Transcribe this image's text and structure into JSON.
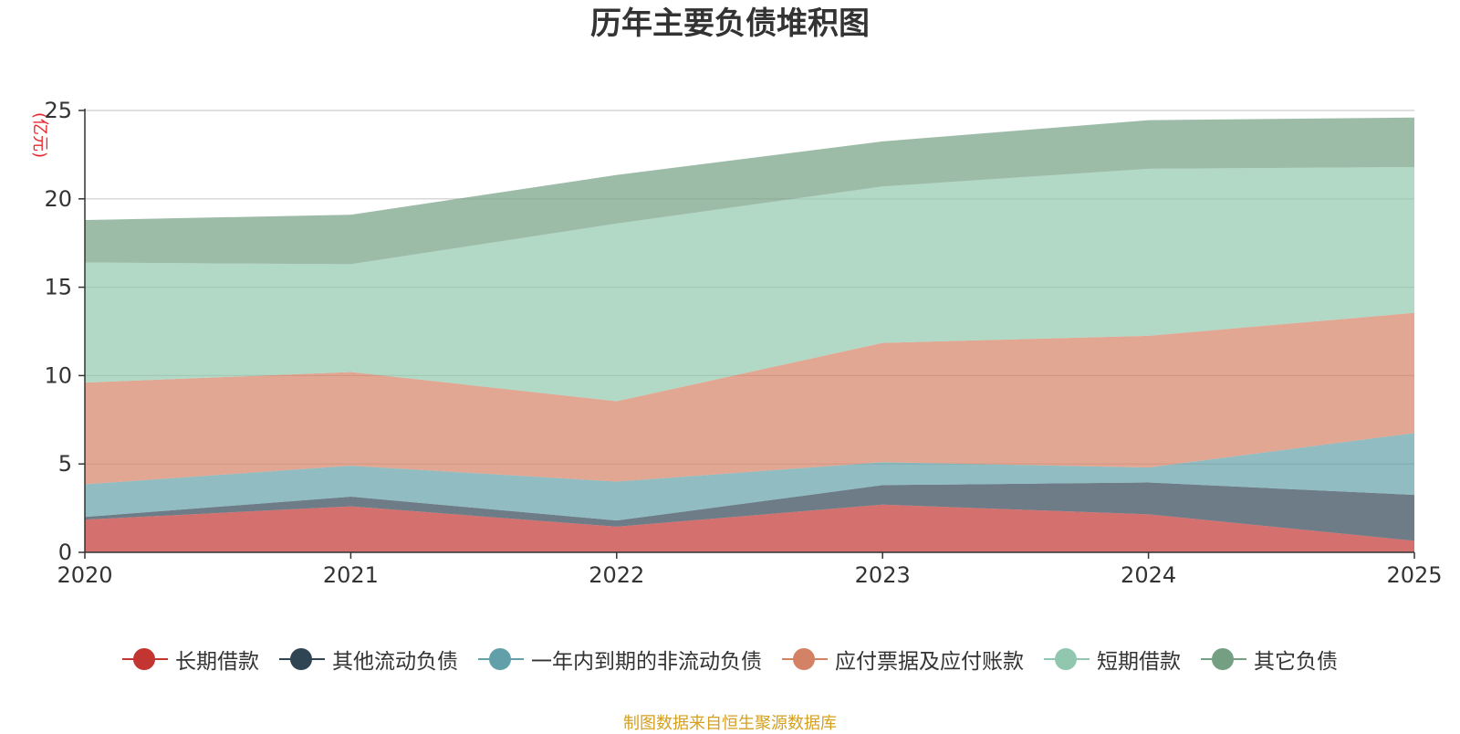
{
  "title": "历年主要负债堆积图",
  "source_note": "制图数据来自恒生聚源数据库",
  "chart_data": {
    "type": "area",
    "stacked": true,
    "title": "历年主要负债堆积图",
    "unit": "(亿元)",
    "xlabel": "",
    "ylabel": "(亿元)",
    "x": [
      "2020",
      "2021",
      "2022",
      "2023",
      "2024",
      "2025"
    ],
    "ylim": [
      0,
      25
    ],
    "yticks": [
      0,
      5,
      10,
      15,
      20,
      25
    ],
    "grid": true,
    "legend_position": "bottom",
    "series": [
      {
        "name": "长期借款",
        "color": "#c23531",
        "values": [
          1.85,
          2.6,
          1.45,
          2.7,
          2.15,
          0.65
        ]
      },
      {
        "name": "其他流动负债",
        "color": "#2f4554",
        "values": [
          0.15,
          0.55,
          0.35,
          1.1,
          1.8,
          2.6
        ]
      },
      {
        "name": "一年内到期的非流动负债",
        "color": "#61a0a8",
        "values": [
          1.85,
          1.75,
          2.2,
          1.3,
          0.85,
          3.5
        ]
      },
      {
        "name": "应付票据及应付账款",
        "color": "#d48265",
        "values": [
          5.75,
          5.3,
          4.55,
          6.75,
          7.45,
          6.8
        ]
      },
      {
        "name": "短期借款",
        "color": "#91c7ae",
        "values": [
          6.8,
          6.1,
          10.05,
          8.85,
          9.45,
          8.25
        ]
      },
      {
        "name": "其它负债",
        "color": "#749f83",
        "values": [
          2.4,
          2.8,
          2.75,
          2.55,
          2.75,
          2.8
        ]
      }
    ]
  }
}
